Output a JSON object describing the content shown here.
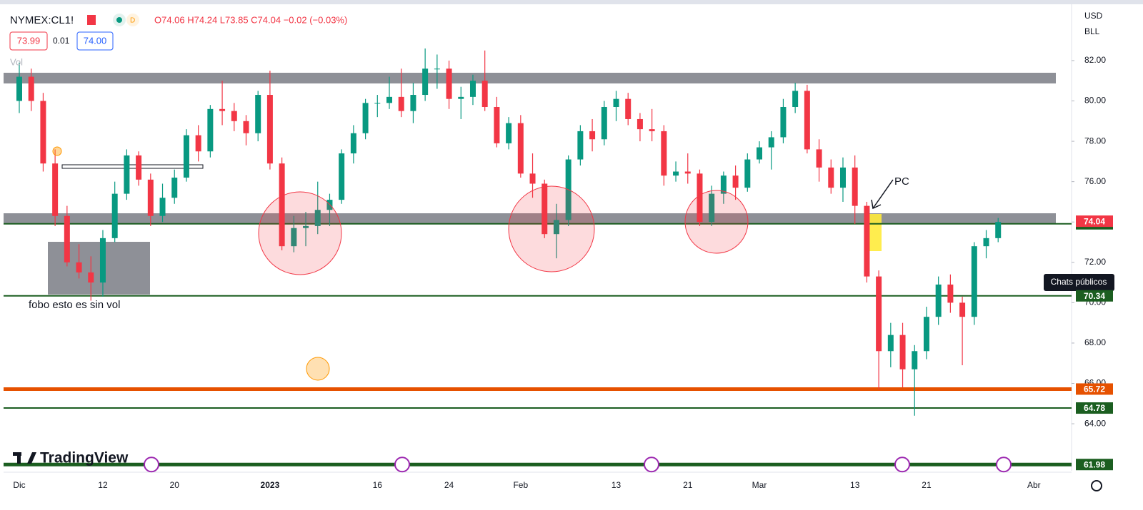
{
  "header": {
    "symbol": "NYMEX:CL1!",
    "ohlc": "O74.06 H74.24 L73.85 C74.04 −0.02 (−0.03%)",
    "bid": "73.99",
    "spread": "0.01",
    "ask": "74.00",
    "volume_label": "Vol"
  },
  "currency": "USD",
  "unit": "BLL",
  "tooltip": "Chats públicos",
  "logo": "TradingView",
  "chart_data": {
    "type": "candlestick",
    "categories": [
      "Dic",
      null,
      null,
      null,
      null,
      null,
      null,
      "12",
      null,
      null,
      null,
      null,
      null,
      "20",
      null,
      null,
      null,
      null,
      null,
      null,
      null,
      "2023",
      null,
      null,
      null,
      null,
      null,
      null,
      null,
      null,
      "16",
      null,
      null,
      null,
      null,
      null,
      "24",
      null,
      null,
      null,
      null,
      null,
      "Feb",
      null,
      null,
      null,
      null,
      null,
      null,
      null,
      "13",
      null,
      null,
      null,
      null,
      null,
      "21",
      null,
      null,
      null,
      null,
      null,
      "Mar",
      null,
      null,
      null,
      null,
      null,
      null,
      null,
      "13",
      null,
      null,
      null,
      null,
      null,
      "21",
      null,
      null,
      null,
      null,
      null,
      null,
      null,
      null,
      "Abr"
    ],
    "open": [
      80.0,
      81.2,
      80.0,
      76.9,
      74.3,
      72.0,
      71.5,
      71.0,
      73.2,
      75.4,
      77.3,
      76.1,
      74.3,
      75.2,
      76.2,
      78.3,
      77.5,
      79.6,
      79.5,
      79.0,
      78.4,
      80.3,
      76.9,
      72.8,
      73.7,
      73.8,
      74.6,
      75.1,
      77.4,
      78.4,
      79.9,
      79.9,
      80.2,
      79.5,
      80.3,
      81.6,
      81.6,
      80.1,
      80.2,
      81.0,
      79.7,
      77.9,
      78.9,
      76.4,
      75.9,
      73.4,
      74.1,
      77.1,
      78.5,
      78.1,
      79.7,
      80.1,
      79.1,
      78.6,
      78.5,
      76.3,
      76.5,
      76.4,
      74.0,
      75.4,
      76.3,
      75.7,
      77.1,
      77.7,
      78.2,
      79.7,
      80.5,
      77.6,
      76.7,
      75.7,
      76.7,
      74.8,
      71.3,
      67.6,
      68.4,
      66.7,
      67.6,
      69.3,
      70.9,
      70.0,
      69.3,
      72.8,
      73.2,
      null,
      null,
      null
    ],
    "high": [
      81.9,
      81.6,
      80.4,
      77.6,
      74.8,
      72.9,
      72.3,
      73.6,
      76.0,
      77.6,
      77.5,
      76.4,
      75.9,
      76.6,
      78.6,
      78.8,
      79.8,
      81.0,
      79.9,
      79.3,
      80.5,
      81.5,
      77.2,
      74.3,
      74.5,
      76.0,
      75.4,
      77.6,
      78.8,
      80.1,
      80.3,
      81.2,
      81.6,
      80.9,
      82.6,
      82.3,
      82.0,
      80.7,
      81.3,
      82.5,
      80.2,
      79.2,
      79.3,
      77.4,
      76.1,
      74.9,
      77.3,
      78.8,
      79.1,
      80.0,
      80.5,
      80.4,
      79.4,
      79.6,
      78.8,
      77.0,
      77.4,
      76.6,
      75.8,
      76.5,
      76.8,
      77.4,
      78.0,
      78.5,
      80.1,
      80.9,
      80.8,
      78.1,
      77.1,
      77.2,
      77.3,
      75.0,
      71.6,
      69.0,
      69.0,
      67.9,
      69.8,
      71.3,
      71.4,
      70.3,
      73.0,
      73.6,
      74.2,
      null,
      null,
      null
    ],
    "low": [
      79.4,
      79.5,
      76.5,
      73.8,
      71.8,
      71.2,
      70.1,
      70.3,
      73.0,
      75.1,
      75.8,
      73.8,
      74.0,
      74.9,
      76.0,
      77.0,
      77.2,
      78.8,
      78.5,
      77.8,
      78.0,
      76.6,
      72.6,
      72.5,
      72.8,
      73.4,
      73.8,
      74.9,
      76.9,
      78.1,
      79.2,
      79.6,
      79.2,
      78.9,
      80.0,
      80.6,
      79.6,
      79.1,
      79.8,
      79.5,
      77.7,
      77.6,
      76.2,
      75.2,
      73.2,
      72.2,
      73.8,
      76.8,
      77.5,
      77.8,
      79.0,
      78.8,
      78.0,
      78.0,
      75.8,
      76.0,
      75.9,
      73.8,
      73.8,
      74.9,
      75.1,
      75.5,
      76.9,
      76.6,
      77.9,
      79.4,
      77.4,
      76.0,
      75.4,
      75.0,
      73.9,
      71.0,
      65.7,
      66.8,
      65.8,
      64.4,
      67.2,
      68.9,
      69.5,
      66.9,
      68.9,
      72.2,
      73.0,
      null,
      null,
      null
    ],
    "close": [
      81.2,
      80.0,
      76.9,
      74.3,
      72.0,
      71.5,
      71.0,
      73.2,
      75.4,
      77.3,
      76.1,
      74.3,
      75.2,
      76.2,
      78.3,
      77.5,
      79.6,
      79.5,
      79.0,
      78.4,
      80.3,
      76.9,
      72.8,
      73.7,
      73.8,
      74.6,
      75.1,
      77.4,
      78.4,
      79.9,
      79.9,
      80.2,
      79.5,
      80.3,
      81.6,
      81.6,
      80.1,
      80.2,
      81.0,
      79.7,
      77.9,
      78.9,
      76.4,
      75.9,
      73.4,
      74.1,
      77.1,
      78.5,
      78.1,
      79.7,
      80.1,
      79.1,
      78.6,
      78.5,
      76.3,
      76.5,
      76.4,
      74.0,
      75.4,
      76.3,
      75.7,
      77.1,
      77.7,
      78.2,
      79.7,
      80.5,
      77.6,
      76.7,
      75.7,
      76.7,
      74.8,
      71.3,
      67.6,
      68.4,
      66.7,
      67.6,
      69.3,
      70.9,
      70.0,
      69.3,
      72.8,
      73.2,
      74.0,
      null,
      null,
      null
    ],
    "up_color": "#089981",
    "down_color": "#f23645",
    "ylim": [
      61.67,
      84.72
    ],
    "yticks": [
      {
        "value": 64,
        "label": "64.00"
      },
      {
        "value": 66,
        "label": "66.00"
      },
      {
        "value": 68,
        "label": "68.00"
      },
      {
        "value": 70,
        "label": "70.00"
      },
      {
        "value": 72,
        "label": "72.00"
      },
      {
        "value": 74,
        "label": "74.00"
      },
      {
        "value": 76,
        "label": "76.00"
      },
      {
        "value": 78,
        "label": "78.00"
      },
      {
        "value": 80,
        "label": "80.00"
      },
      {
        "value": 82,
        "label": "82.00"
      }
    ],
    "horizontal_lines": [
      {
        "value": 73.91,
        "color": "#1b5e20",
        "width": 2
      },
      {
        "value": 70.34,
        "color": "#1b5e20",
        "width": 2
      },
      {
        "value": 65.72,
        "color": "#e65100",
        "width": 5
      },
      {
        "value": 64.78,
        "color": "#1b5e20",
        "width": 2
      },
      {
        "value": 61.98,
        "color": "#1b5e20",
        "width": 5
      }
    ],
    "last_price": {
      "value": 74.04,
      "color": "#f23645"
    },
    "annotations": [
      "fobo esto es sin vol",
      "PC"
    ]
  }
}
